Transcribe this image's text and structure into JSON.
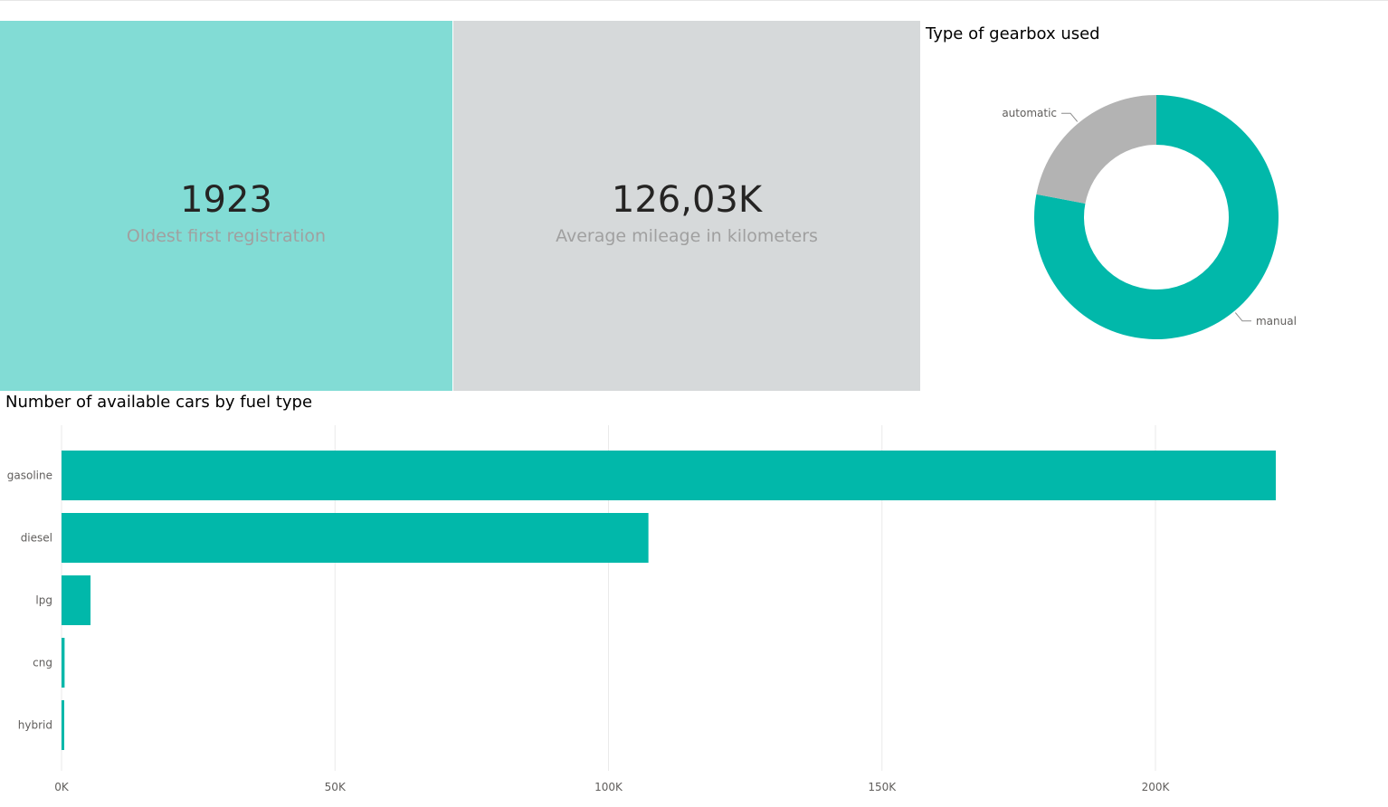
{
  "cards": [
    {
      "value": "1923",
      "label": "Oldest first registration",
      "color": "#82dcd5"
    },
    {
      "value": "126,03K",
      "label": "Average mileage in kilometers",
      "color": "#d6d9da"
    }
  ],
  "chart_data": [
    {
      "type": "pie",
      "title": "Type of gearbox used",
      "donut": true,
      "categories": [
        "manual",
        "automatic"
      ],
      "values": [
        78,
        22
      ],
      "colors": [
        "#01b8aa",
        "#b3b3b3"
      ],
      "legend": "none"
    },
    {
      "type": "bar",
      "orientation": "horizontal",
      "title": "Number of available cars by fuel type",
      "categories": [
        "gasoline",
        "diesel",
        "lpg",
        "cng",
        "hybrid"
      ],
      "values": [
        222000,
        107300,
        5300,
        560,
        270
      ],
      "xlim": [
        0,
        250000
      ],
      "xticks": [
        0,
        50000,
        100000,
        150000,
        200000
      ],
      "xtick_labels": [
        "0K",
        "50K",
        "100K",
        "150K",
        "200K"
      ],
      "grid": true,
      "color": "#01b8aa"
    }
  ]
}
